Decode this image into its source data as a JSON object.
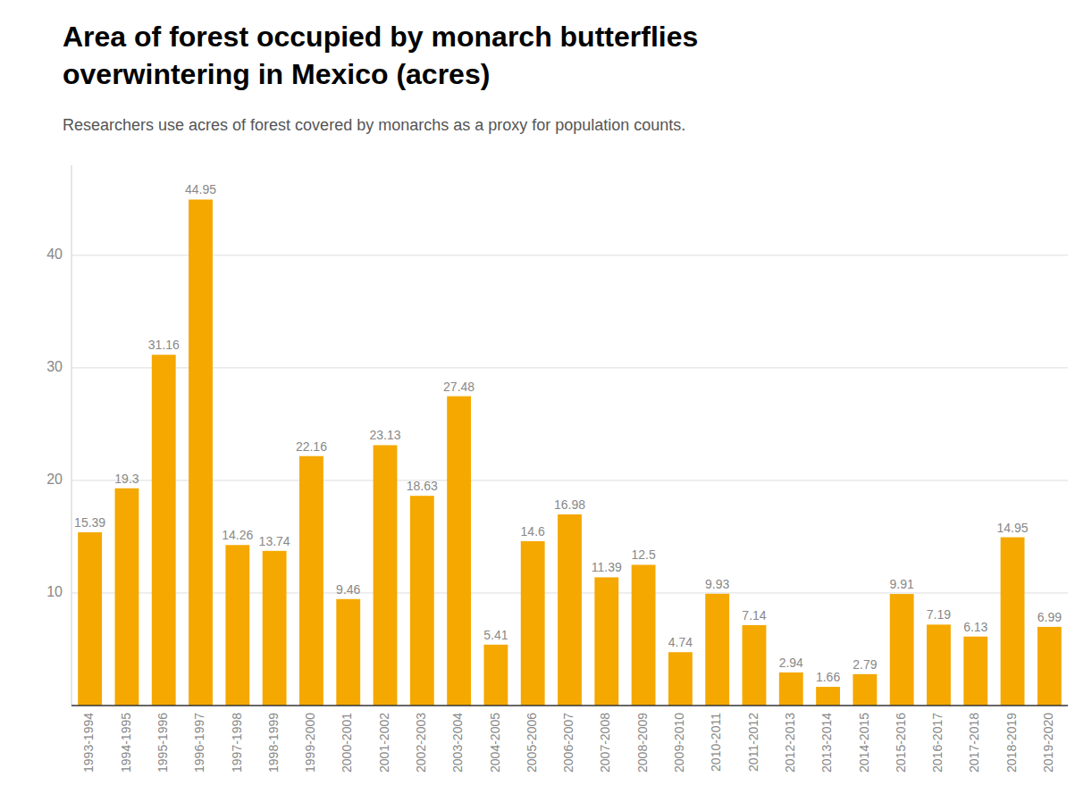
{
  "chart_data": {
    "type": "bar",
    "title": [
      "Area of forest occupied by monarch butterflies",
      "overwintering in Mexico (acres)"
    ],
    "subtitle": "Researchers use acres of forest covered by monarchs as a proxy for population counts.",
    "categories": [
      "1993-1994",
      "1994-1995",
      "1995-1996",
      "1996-1997",
      "1997-1998",
      "1998-1999",
      "1999-2000",
      "2000-2001",
      "2001-2002",
      "2002-2003",
      "2003-2004",
      "2004-2005",
      "2005-2006",
      "2006-2007",
      "2007-2008",
      "2008-2009",
      "2009-2010",
      "2010-2011",
      "2011-2012",
      "2012-2013",
      "2013-2014",
      "2014-2015",
      "2015-2016",
      "2016-2017",
      "2017-2018",
      "2018-2019",
      "2019-2020"
    ],
    "values": [
      15.39,
      19.3,
      31.16,
      44.95,
      14.26,
      13.74,
      22.16,
      9.46,
      23.13,
      18.63,
      27.48,
      5.41,
      14.6,
      16.98,
      11.39,
      12.5,
      4.74,
      9.93,
      7.14,
      2.94,
      1.66,
      2.79,
      9.91,
      7.19,
      6.13,
      14.95,
      6.99
    ],
    "color": "#F5A800",
    "ylim": [
      0,
      48
    ],
    "yticks": [
      10,
      20,
      30,
      40
    ],
    "grid": true,
    "data_labels": true
  }
}
